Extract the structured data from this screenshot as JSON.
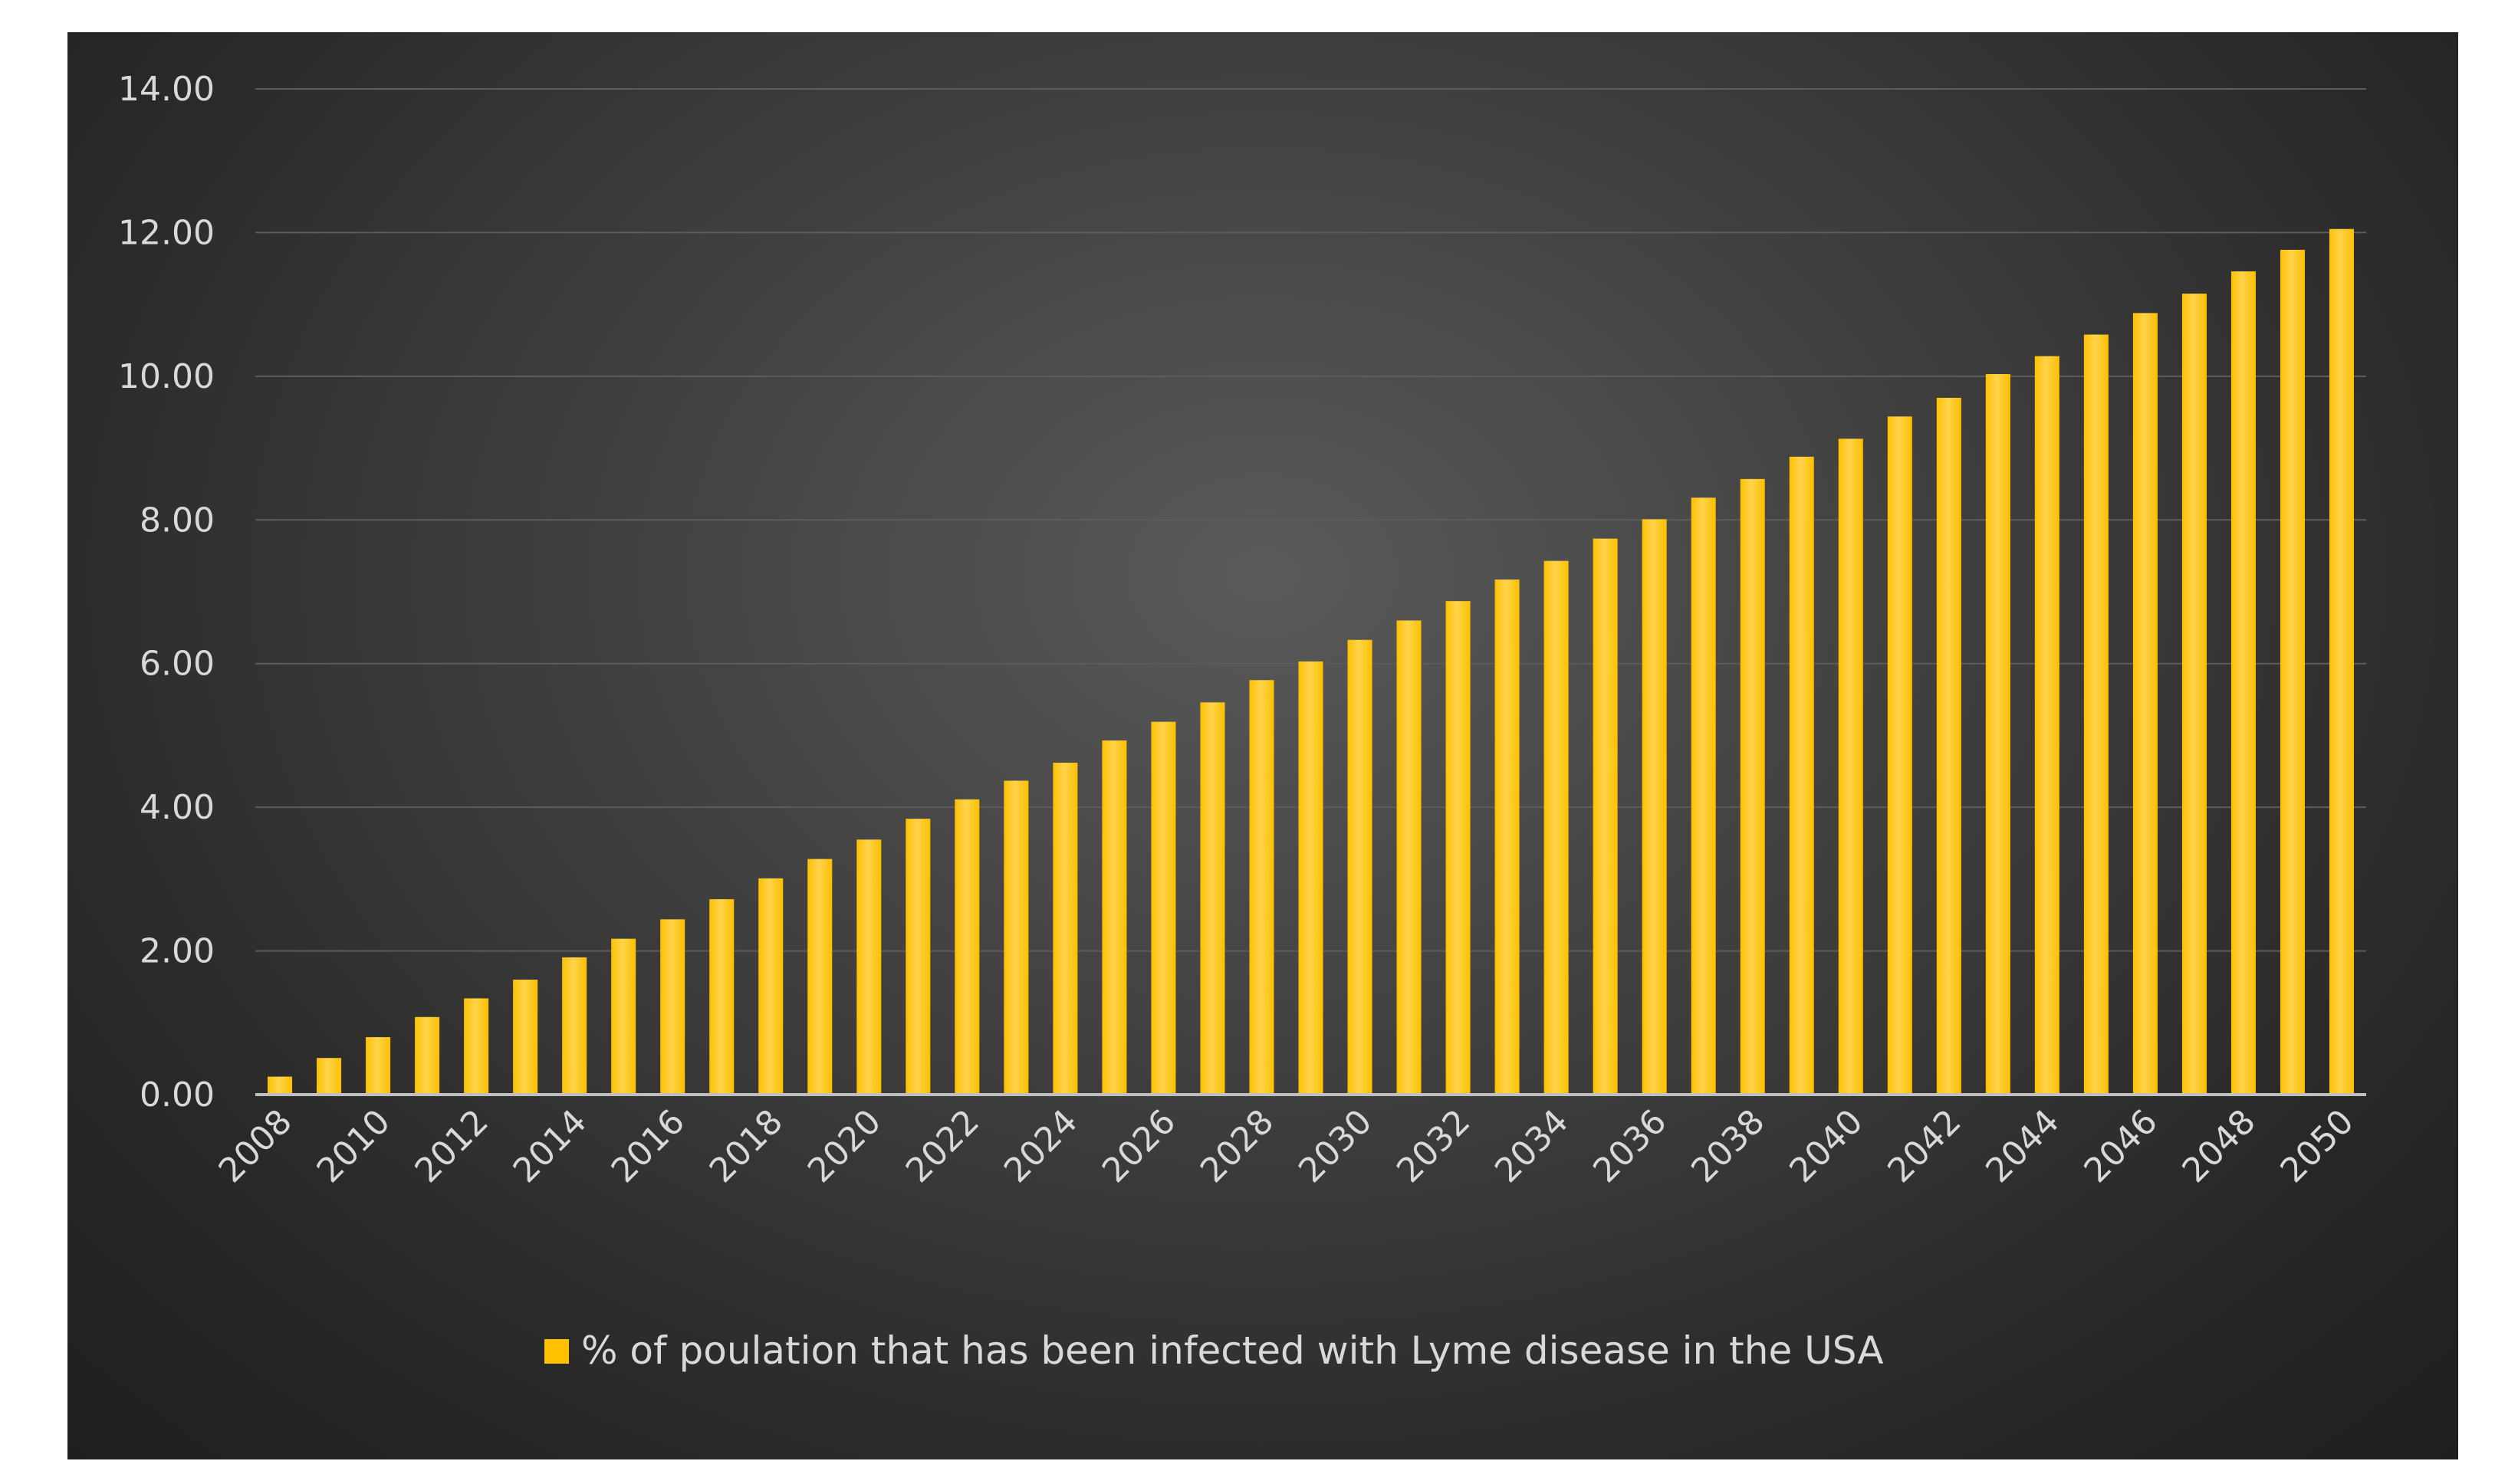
{
  "chart_data": {
    "type": "bar",
    "title": "",
    "xlabel": "",
    "ylabel": "",
    "ylim": [
      0,
      14
    ],
    "yticks": [
      "0.00",
      "2.00",
      "4.00",
      "6.00",
      "8.00",
      "10.00",
      "12.00",
      "14.00"
    ],
    "grid": true,
    "legend_position": "bottom",
    "colors": {
      "bar": "#ffc000",
      "bar_highlight": "#ffd44d",
      "grid": "#5c5c5c",
      "axis": "#bfbfbf",
      "text": "#d9d9d9"
    },
    "categories": [
      "2008",
      "2009",
      "2010",
      "2011",
      "2012",
      "2013",
      "2014",
      "2015",
      "2016",
      "2017",
      "2018",
      "2019",
      "2020",
      "2021",
      "2022",
      "2023",
      "2024",
      "2025",
      "2026",
      "2027",
      "2028",
      "2029",
      "2030",
      "2031",
      "2032",
      "2033",
      "2034",
      "2035",
      "2036",
      "2037",
      "2038",
      "2039",
      "2040",
      "2041",
      "2042",
      "2043",
      "2044",
      "2045",
      "2046",
      "2047",
      "2048",
      "2049",
      "2050"
    ],
    "x_tick_labels": [
      "2008",
      "2010",
      "2012",
      "2014",
      "2016",
      "2018",
      "2020",
      "2022",
      "2024",
      "2026",
      "2028",
      "2030",
      "2032",
      "2034",
      "2036",
      "2038",
      "2040",
      "2042",
      "2044",
      "2046",
      "2048",
      "2050"
    ],
    "series": [
      {
        "name": "% of poulation that has been infected with Lyme disease in the USA",
        "values": [
          0.25,
          0.51,
          0.8,
          1.08,
          1.34,
          1.6,
          1.91,
          2.17,
          2.44,
          2.72,
          3.01,
          3.28,
          3.55,
          3.84,
          4.11,
          4.37,
          4.62,
          4.93,
          5.19,
          5.46,
          5.77,
          6.03,
          6.33,
          6.6,
          6.87,
          7.17,
          7.43,
          7.74,
          8.01,
          8.31,
          8.57,
          8.88,
          9.13,
          9.44,
          9.7,
          10.03,
          10.28,
          10.58,
          10.88,
          11.15,
          11.46,
          11.76,
          12.05
        ]
      }
    ]
  }
}
